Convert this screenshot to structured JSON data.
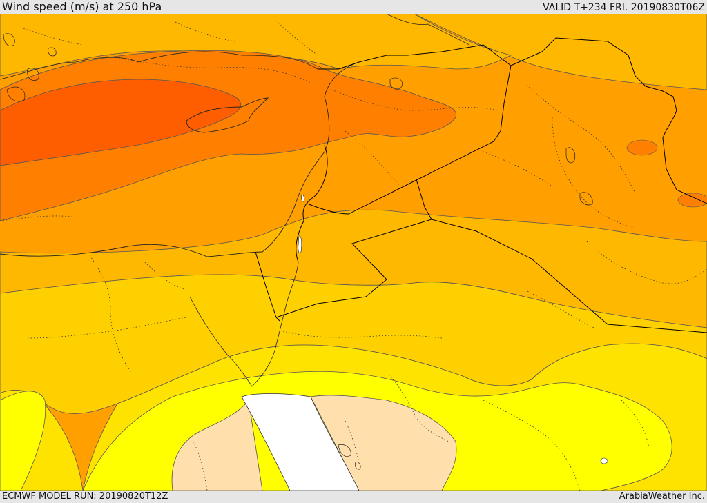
{
  "header": {
    "title": "Wind speed (m/s) at 250 hPa",
    "valid": "VALID T+234 FRI. 20190830T06Z"
  },
  "footer": {
    "model_run": "ECMWF MODEL RUN: 20190820T12Z",
    "credit": "ArabiaWeather Inc."
  },
  "colors": {
    "band_deep": "#ff5e00",
    "band_strong": "#ff8000",
    "band_orange": "#ff9f00",
    "band_amber": "#ffb800",
    "band_gold": "#ffd000",
    "band_yellow_gold": "#ffe300",
    "band_yellow": "#ffff00",
    "band_weak": "#ffe0ad",
    "sea": "#ffffff",
    "border": "#000000",
    "contour": "#555555"
  }
}
